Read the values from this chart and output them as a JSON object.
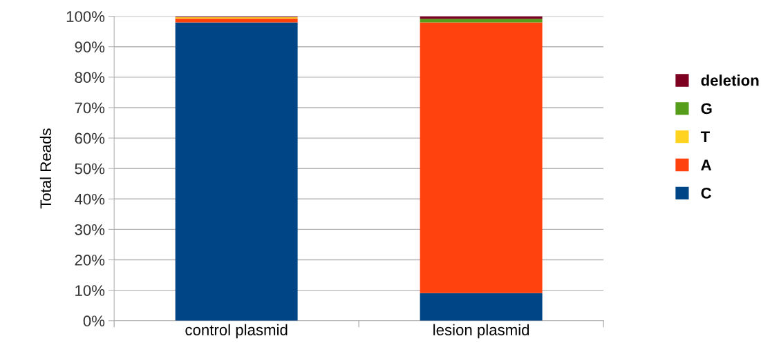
{
  "chart_data": {
    "type": "bar",
    "stacked": true,
    "ylabel": "Total Reads",
    "categories": [
      "control plasmid",
      "lesion plasmid"
    ],
    "series": [
      {
        "name": "C",
        "color": "#004586",
        "values": [
          98.0,
          9.1
        ]
      },
      {
        "name": "A",
        "color": "#ff420e",
        "values": [
          1.3,
          88.9
        ]
      },
      {
        "name": "T",
        "color": "#ffd320",
        "values": [
          0.4,
          0.0
        ]
      },
      {
        "name": "G",
        "color": "#579d1c",
        "values": [
          null,
          1.2
        ]
      },
      {
        "name": "deletion",
        "color": "#7e0021",
        "values": [
          0.2,
          0.8
        ]
      }
    ],
    "ylim": [
      0,
      100
    ],
    "yticks": [
      {
        "value": 0,
        "label": "0%"
      },
      {
        "value": 10,
        "label": "10%"
      },
      {
        "value": 20,
        "label": "20%"
      },
      {
        "value": 30,
        "label": "30%"
      },
      {
        "value": 40,
        "label": "40%"
      },
      {
        "value": 50,
        "label": "50%"
      },
      {
        "value": 60,
        "label": "60%"
      },
      {
        "value": 70,
        "label": "70%"
      },
      {
        "value": 80,
        "label": "80%"
      },
      {
        "value": 90,
        "label": "90%"
      },
      {
        "value": 100,
        "label": "100%"
      }
    ],
    "grid": "y",
    "legend": "right"
  }
}
